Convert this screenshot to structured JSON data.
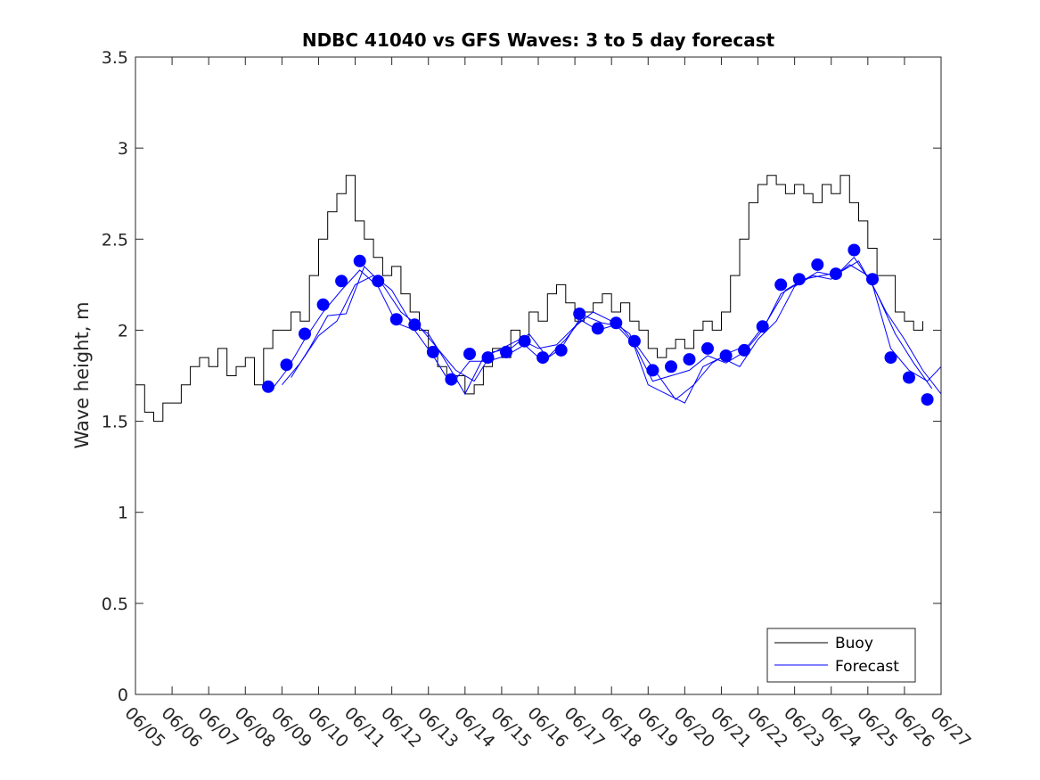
{
  "chart_data": {
    "type": "line",
    "title": "NDBC 41040 vs GFS Waves: 3 to 5 day forecast",
    "xlabel": "",
    "ylabel": "Wave height, m",
    "ylim": [
      0,
      3.5
    ],
    "yticks": [
      0,
      0.5,
      1,
      1.5,
      2,
      2.5,
      3,
      3.5
    ],
    "ytick_labels": [
      "0",
      "0.5",
      "1",
      "1.5",
      "2",
      "2.5",
      "3",
      "3.5"
    ],
    "xlim": [
      "06/05",
      "06/27"
    ],
    "xtick_labels": [
      "06/05",
      "06/06",
      "06/07",
      "06/08",
      "06/09",
      "06/10",
      "06/11",
      "06/12",
      "06/13",
      "06/14",
      "06/15",
      "06/16",
      "06/17",
      "06/18",
      "06/19",
      "06/20",
      "06/21",
      "06/22",
      "06/23",
      "06/24",
      "06/25",
      "06/26",
      "06/27"
    ],
    "grid": false,
    "legend": {
      "placement": "bottom-right",
      "entries": [
        "Buoy",
        "Forecast"
      ]
    },
    "colors": {
      "buoy": "#000000",
      "forecast": "#0000ff"
    },
    "series": [
      {
        "name": "Buoy",
        "style": "line",
        "x": [
          "06/05",
          "06/05 06:00",
          "06/05 12:00",
          "06/05 18:00",
          "06/06",
          "06/06 06:00",
          "06/06 12:00",
          "06/06 18:00",
          "06/07",
          "06/07 06:00",
          "06/07 12:00",
          "06/07 18:00",
          "06/08",
          "06/08 06:00",
          "06/08 12:00",
          "06/08 18:00",
          "06/09",
          "06/09 06:00",
          "06/09 12:00",
          "06/09 18:00",
          "06/10",
          "06/10 06:00",
          "06/10 12:00",
          "06/10 18:00",
          "06/11",
          "06/11 06:00",
          "06/11 12:00",
          "06/11 18:00",
          "06/12",
          "06/12 06:00",
          "06/12 12:00",
          "06/12 18:00",
          "06/13",
          "06/13 06:00",
          "06/13 12:00",
          "06/13 18:00",
          "06/14",
          "06/14 06:00",
          "06/14 12:00",
          "06/14 18:00",
          "06/15",
          "06/15 06:00",
          "06/15 12:00",
          "06/15 18:00",
          "06/16",
          "06/16 06:00",
          "06/16 12:00",
          "06/16 18:00",
          "06/17",
          "06/17 06:00",
          "06/17 12:00",
          "06/17 18:00",
          "06/18",
          "06/18 06:00",
          "06/18 12:00",
          "06/18 18:00",
          "06/19",
          "06/19 06:00",
          "06/19 12:00",
          "06/19 18:00",
          "06/20",
          "06/20 06:00",
          "06/20 12:00",
          "06/20 18:00",
          "06/21",
          "06/21 06:00",
          "06/21 12:00",
          "06/21 18:00",
          "06/22",
          "06/22 06:00",
          "06/22 12:00",
          "06/22 18:00",
          "06/23",
          "06/23 06:00",
          "06/23 12:00",
          "06/23 18:00",
          "06/24",
          "06/24 06:00",
          "06/24 12:00",
          "06/24 18:00",
          "06/25",
          "06/25 06:00",
          "06/25 12:00",
          "06/25 18:00",
          "06/26",
          "06/26 06:00",
          "06/26 12:00"
        ],
        "y": [
          1.7,
          1.55,
          1.5,
          1.6,
          1.6,
          1.7,
          1.8,
          1.85,
          1.8,
          1.9,
          1.75,
          1.8,
          1.85,
          1.7,
          1.9,
          2.0,
          2.0,
          2.1,
          2.05,
          2.3,
          2.5,
          2.65,
          2.75,
          2.85,
          2.6,
          2.5,
          2.4,
          2.3,
          2.35,
          2.2,
          2.1,
          2.0,
          1.9,
          1.8,
          1.75,
          1.75,
          1.65,
          1.7,
          1.8,
          1.9,
          1.85,
          2.0,
          1.95,
          2.1,
          2.05,
          2.2,
          2.25,
          2.15,
          2.05,
          2.1,
          2.15,
          2.2,
          2.1,
          2.15,
          2.05,
          2.0,
          1.9,
          1.85,
          1.9,
          1.95,
          1.9,
          2.0,
          2.05,
          2.0,
          2.1,
          2.3,
          2.5,
          2.7,
          2.8,
          2.85,
          2.8,
          2.75,
          2.8,
          2.75,
          2.7,
          2.8,
          2.75,
          2.85,
          2.7,
          2.6,
          2.45,
          2.3,
          2.3,
          2.1,
          2.05,
          2.0,
          2.05
        ]
      },
      {
        "name": "Forecast",
        "style": "markers",
        "x": [
          "06/08 15:00",
          "06/09 03:00",
          "06/09 15:00",
          "06/10 03:00",
          "06/10 15:00",
          "06/11 03:00",
          "06/11 15:00",
          "06/12 03:00",
          "06/12 15:00",
          "06/13 03:00",
          "06/13 15:00",
          "06/14 03:00",
          "06/14 15:00",
          "06/15 03:00",
          "06/15 15:00",
          "06/16 03:00",
          "06/16 15:00",
          "06/17 03:00",
          "06/17 15:00",
          "06/18 03:00",
          "06/18 15:00",
          "06/19 03:00",
          "06/19 15:00",
          "06/20 03:00",
          "06/20 15:00",
          "06/21 03:00",
          "06/21 15:00",
          "06/22 03:00",
          "06/22 15:00",
          "06/23 03:00",
          "06/23 15:00",
          "06/24 03:00",
          "06/24 15:00",
          "06/25 03:00",
          "06/25 15:00",
          "06/26 03:00",
          "06/26 15:00"
        ],
        "y": [
          1.69,
          1.81,
          1.98,
          2.14,
          2.27,
          2.38,
          2.27,
          2.06,
          2.03,
          1.88,
          1.73,
          1.87,
          1.85,
          1.88,
          1.94,
          1.85,
          1.89,
          2.09,
          2.01,
          2.04,
          1.94,
          1.78,
          1.8,
          1.84,
          1.9,
          1.86,
          1.89,
          2.02,
          2.25,
          2.28,
          2.36,
          2.31,
          2.44,
          2.28,
          1.85,
          1.74,
          1.62
        ]
      },
      {
        "style": "line",
        "x": [
          "06/08 16:00",
          "06/09 03:00",
          "06/09 15:00",
          "06/10 03:00",
          "06/10 15:00",
          "06/11 03:00",
          "06/11 15:00",
          "06/12 03:00",
          "06/12 15:00",
          "06/13 03:00",
          "06/13 15:00",
          "06/14 03:00",
          "06/14 15:00",
          "06/15 03:00",
          "06/15 15:00",
          "06/16 03:00",
          "06/16 15:00",
          "06/17 03:00",
          "06/17 15:00",
          "06/18 03:00",
          "06/18 15:00",
          "06/19 03:00",
          "06/19 15:00",
          "06/20 03:00",
          "06/20 15:00",
          "06/21 03:00",
          "06/21 15:00",
          "06/22 03:00",
          "06/22 15:00",
          "06/23 03:00",
          "06/23 15:00",
          "06/24 03:00",
          "06/24 15:00",
          "06/25 03:00",
          "06/25 15:00",
          "06/26 03:00",
          "06/26 15:00",
          "06/27"
        ],
        "y": [
          1.66,
          1.78,
          1.95,
          2.1,
          2.22,
          2.33,
          2.24,
          2.04,
          2.0,
          1.86,
          1.7,
          1.83,
          1.83,
          1.86,
          1.92,
          1.83,
          1.9,
          2.06,
          2.0,
          2.03,
          1.92,
          1.72,
          1.75,
          1.78,
          1.86,
          1.82,
          1.88,
          2.0,
          2.2,
          2.26,
          2.32,
          2.3,
          2.4,
          2.25,
          1.9,
          1.78,
          1.72,
          1.8
        ]
      },
      {
        "style": "line",
        "x": [
          "06/09",
          "06/09 12:00",
          "06/10",
          "06/10 12:00",
          "06/11",
          "06/11 12:00",
          "06/12",
          "06/12 12:00",
          "06/13",
          "06/13 12:00",
          "06/14",
          "06/14 12:00",
          "06/15",
          "06/15 12:00",
          "06/16",
          "06/16 12:00",
          "06/17",
          "06/17 12:00",
          "06/18",
          "06/18 12:00",
          "06/19",
          "06/19 12:00",
          "06/20",
          "06/20 12:00",
          "06/21",
          "06/21 12:00",
          "06/22",
          "06/22 12:00",
          "06/23",
          "06/23 12:00",
          "06/24",
          "06/24 12:00",
          "06/25",
          "06/25 12:00",
          "06/26",
          "06/26 12:00",
          "06/27"
        ],
        "y": [
          1.7,
          1.82,
          1.97,
          2.05,
          2.25,
          2.3,
          2.22,
          2.05,
          1.98,
          1.82,
          1.65,
          1.85,
          1.9,
          1.95,
          1.9,
          1.92,
          2.02,
          2.1,
          2.05,
          1.98,
          1.7,
          1.65,
          1.6,
          1.8,
          1.85,
          1.8,
          1.95,
          2.05,
          2.24,
          2.3,
          2.28,
          2.36,
          2.3,
          2.1,
          1.95,
          1.78,
          1.65
        ]
      },
      {
        "style": "line",
        "x": [
          "06/09 06:00",
          "06/09 18:00",
          "06/10 06:00",
          "06/10 18:00",
          "06/11 06:00",
          "06/11 18:00",
          "06/12 06:00",
          "06/12 18:00",
          "06/13 06:00",
          "06/13 18:00",
          "06/14 06:00",
          "06/14 18:00",
          "06/15 06:00",
          "06/15 18:00",
          "06/16 06:00",
          "06/16 18:00",
          "06/17 06:00",
          "06/17 18:00",
          "06/18 06:00",
          "06/18 18:00",
          "06/19 06:00",
          "06/19 18:00",
          "06/20 06:00",
          "06/20 18:00",
          "06/21 06:00",
          "06/21 18:00",
          "06/22 06:00",
          "06/22 18:00",
          "06/23 06:00",
          "06/23 18:00",
          "06/24 06:00",
          "06/24 18:00",
          "06/25 06:00",
          "06/25 18:00",
          "06/26 06:00",
          "06/26 18:00"
        ],
        "y": [
          1.74,
          1.9,
          2.08,
          2.09,
          2.35,
          2.25,
          2.1,
          2.02,
          1.9,
          1.78,
          1.72,
          1.88,
          1.9,
          1.98,
          1.85,
          1.95,
          2.08,
          2.04,
          2.02,
          1.9,
          1.76,
          1.62,
          1.7,
          1.82,
          1.88,
          1.92,
          2.05,
          2.22,
          2.28,
          2.3,
          2.32,
          2.38,
          2.2,
          1.98,
          1.82,
          1.68
        ]
      }
    ]
  }
}
